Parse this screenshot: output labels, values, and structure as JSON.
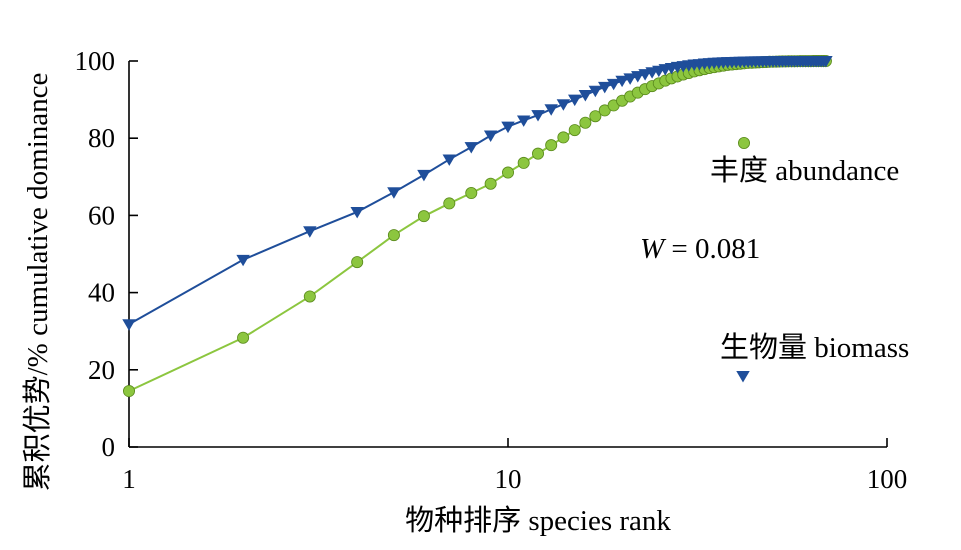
{
  "chart_data": {
    "type": "line",
    "title": "",
    "xlabel": "物种排序 species rank",
    "ylabel": "累积优势/% cumulative dominance",
    "xscale": "log",
    "xlim": [
      1,
      100
    ],
    "ylim": [
      0,
      100
    ],
    "x_ticks": [
      "1",
      "10",
      "100"
    ],
    "y_ticks": [
      "0",
      "20",
      "40",
      "60",
      "80",
      "100"
    ],
    "grid": false,
    "legend_position": "right",
    "annotation": {
      "symbol": "W",
      "text": " = 0.081"
    },
    "series": [
      {
        "name": "丰度 abundance",
        "marker": "circle",
        "color": "#8cc63f",
        "line_color": "#8cc63f",
        "marker_edge": "#5a8a1c",
        "x": [
          1,
          2,
          3,
          4,
          5,
          6,
          7,
          8,
          9,
          10,
          11,
          12,
          13,
          14,
          15,
          16,
          17,
          18,
          19,
          20,
          21,
          22,
          23,
          24,
          25,
          26,
          27,
          28,
          29,
          30,
          31,
          32,
          33,
          34,
          35,
          36,
          37,
          38,
          39,
          40,
          41,
          42,
          43,
          44,
          45,
          46,
          47,
          48,
          49,
          50,
          51,
          52,
          53,
          54,
          55,
          56,
          57,
          58,
          59,
          60,
          61,
          62,
          63,
          64,
          65,
          66,
          67,
          68,
          69
        ],
        "y": [
          14.5,
          28.3,
          39.0,
          47.9,
          54.9,
          59.8,
          63.1,
          65.8,
          68.2,
          71.1,
          73.6,
          76.0,
          78.2,
          80.2,
          82.1,
          84.0,
          85.7,
          87.2,
          88.5,
          89.7,
          90.8,
          91.8,
          92.7,
          93.5,
          94.2,
          94.9,
          95.5,
          96.0,
          96.5,
          96.9,
          97.3,
          97.6,
          97.9,
          98.2,
          98.4,
          98.6,
          98.8,
          99.0,
          99.1,
          99.2,
          99.3,
          99.4,
          99.5,
          99.55,
          99.6,
          99.65,
          99.7,
          99.75,
          99.8,
          99.82,
          99.85,
          99.87,
          99.89,
          99.9,
          99.92,
          99.93,
          99.94,
          99.95,
          99.96,
          99.97,
          99.97,
          99.98,
          99.98,
          99.99,
          99.99,
          99.99,
          100,
          100,
          100
        ]
      },
      {
        "name": "生物量 biomass",
        "marker": "triangle-down",
        "color": "#1f4e9a",
        "line_color": "#1f4e9a",
        "marker_edge": "#1f4e9a",
        "x": [
          1,
          2,
          3,
          4,
          5,
          6,
          7,
          8,
          9,
          10,
          11,
          12,
          13,
          14,
          15,
          16,
          17,
          18,
          19,
          20,
          21,
          22,
          23,
          24,
          25,
          26,
          27,
          28,
          29,
          30,
          31,
          32,
          33,
          34,
          35,
          36,
          37,
          38,
          39,
          40,
          41,
          42,
          43,
          44,
          45,
          46,
          47,
          48,
          49,
          50,
          51,
          52,
          53,
          54,
          55,
          56,
          57,
          58,
          59,
          60,
          61,
          62,
          63,
          64,
          65,
          66,
          67,
          68,
          69
        ],
        "y": [
          31.8,
          48.5,
          55.9,
          60.9,
          66.0,
          70.5,
          74.5,
          77.7,
          80.7,
          83.0,
          84.6,
          86.0,
          87.5,
          88.8,
          90.0,
          91.2,
          92.3,
          93.3,
          94.1,
          94.9,
          95.5,
          96.1,
          96.6,
          97.1,
          97.5,
          97.9,
          98.2,
          98.5,
          98.7,
          98.9,
          99.1,
          99.2,
          99.35,
          99.45,
          99.55,
          99.62,
          99.68,
          99.73,
          99.77,
          99.8,
          99.83,
          99.86,
          99.88,
          99.9,
          99.91,
          99.92,
          99.93,
          99.94,
          99.95,
          99.96,
          99.96,
          99.97,
          99.97,
          99.98,
          99.98,
          99.98,
          99.99,
          99.99,
          99.99,
          99.99,
          99.99,
          100,
          100,
          100,
          100,
          100,
          100,
          100,
          100
        ]
      }
    ]
  }
}
